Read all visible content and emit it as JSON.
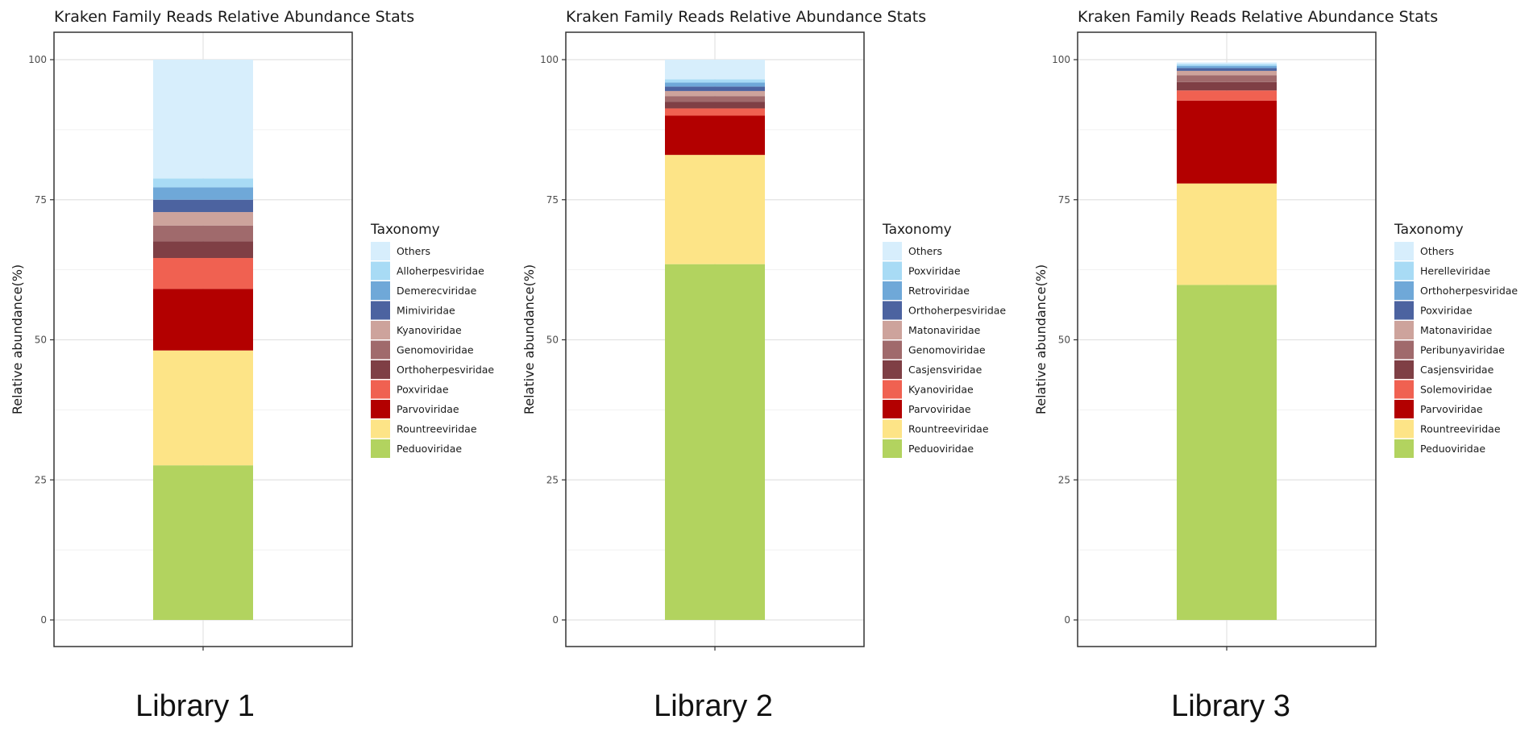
{
  "chart_data": [
    {
      "type": "bar",
      "stacked": true,
      "percent": true,
      "title": "Kraken Family Reads Relative Abundance Stats",
      "ylabel": "Relative abundance(%)",
      "xlabel": "",
      "ylim": [
        0,
        100
      ],
      "yticks": [
        0,
        25,
        50,
        75,
        100
      ],
      "grid": true,
      "legend": {
        "position": "right",
        "title": "Taxonomy"
      },
      "library_label": "Library 1",
      "series": [
        {
          "name": "Peduoviridae",
          "value": 27.6,
          "color": "#b2d35f"
        },
        {
          "name": "Rountreeviridae",
          "value": 20.5,
          "color": "#fde487"
        },
        {
          "name": "Parvoviridae",
          "value": 11.0,
          "color": "#b30000"
        },
        {
          "name": "Poxviridae",
          "value": 5.5,
          "color": "#f06151"
        },
        {
          "name": "Orthoherpesviridae",
          "value": 3.0,
          "color": "#7f3f45"
        },
        {
          "name": "Genomoviridae",
          "value": 2.8,
          "color": "#a06a6c"
        },
        {
          "name": "Kyanoviridae",
          "value": 2.4,
          "color": "#cda39c"
        },
        {
          "name": "Mimiviridae",
          "value": 2.2,
          "color": "#4c63a0"
        },
        {
          "name": "Demerecviridae",
          "value": 2.2,
          "color": "#6fa8d8"
        },
        {
          "name": "Alloherpesviridae",
          "value": 1.6,
          "color": "#a8dbf5"
        },
        {
          "name": "Others",
          "value": 21.2,
          "color": "#d7eefc"
        }
      ]
    },
    {
      "type": "bar",
      "stacked": true,
      "percent": true,
      "title": "Kraken Family Reads Relative Abundance Stats",
      "ylabel": "Relative abundance(%)",
      "xlabel": "",
      "ylim": [
        0,
        100
      ],
      "yticks": [
        0,
        25,
        50,
        75,
        100
      ],
      "grid": true,
      "legend": {
        "position": "right",
        "title": "Taxonomy"
      },
      "library_label": "Library 2",
      "series": [
        {
          "name": "Peduoviridae",
          "value": 63.5,
          "color": "#b2d35f"
        },
        {
          "name": "Rountreeviridae",
          "value": 19.5,
          "color": "#fde487"
        },
        {
          "name": "Parvoviridae",
          "value": 7.0,
          "color": "#b30000"
        },
        {
          "name": "Kyanoviridae",
          "value": 1.3,
          "color": "#f06151"
        },
        {
          "name": "Casjensviridae",
          "value": 1.2,
          "color": "#7f3f45"
        },
        {
          "name": "Genomoviridae",
          "value": 1.0,
          "color": "#a06a6c"
        },
        {
          "name": "Matonaviridae",
          "value": 0.9,
          "color": "#cda39c"
        },
        {
          "name": "Orthoherpesviridae",
          "value": 0.8,
          "color": "#4c63a0"
        },
        {
          "name": "Retroviridae",
          "value": 0.7,
          "color": "#6fa8d8"
        },
        {
          "name": "Poxviridae",
          "value": 0.6,
          "color": "#a8dbf5"
        },
        {
          "name": "Others",
          "value": 3.5,
          "color": "#d7eefc"
        }
      ]
    },
    {
      "type": "bar",
      "stacked": true,
      "percent": true,
      "title": "Kraken Family Reads Relative Abundance Stats",
      "ylabel": "Relative abundance(%)",
      "xlabel": "",
      "ylim": [
        0,
        100
      ],
      "yticks": [
        0,
        25,
        50,
        75,
        100
      ],
      "grid": true,
      "legend": {
        "position": "right",
        "title": "Taxonomy"
      },
      "library_label": "Library 3",
      "series": [
        {
          "name": "Peduoviridae",
          "value": 59.8,
          "color": "#b2d35f"
        },
        {
          "name": "Rountreeviridae",
          "value": 18.1,
          "color": "#fde487"
        },
        {
          "name": "Parvoviridae",
          "value": 14.8,
          "color": "#b30000"
        },
        {
          "name": "Solemoviridae",
          "value": 1.8,
          "color": "#f06151"
        },
        {
          "name": "Casjensviridae",
          "value": 1.5,
          "color": "#7f3f45"
        },
        {
          "name": "Peribunyaviridae",
          "value": 1.2,
          "color": "#a06a6c"
        },
        {
          "name": "Matonaviridae",
          "value": 0.8,
          "color": "#cda39c"
        },
        {
          "name": "Poxviridae",
          "value": 0.5,
          "color": "#4c63a0"
        },
        {
          "name": "Orthoherpesviridae",
          "value": 0.4,
          "color": "#6fa8d8"
        },
        {
          "name": "Herelleviridae",
          "value": 0.3,
          "color": "#a8dbf5"
        },
        {
          "name": "Others",
          "value": 0.3,
          "color": "#d7eefc"
        }
      ]
    }
  ]
}
